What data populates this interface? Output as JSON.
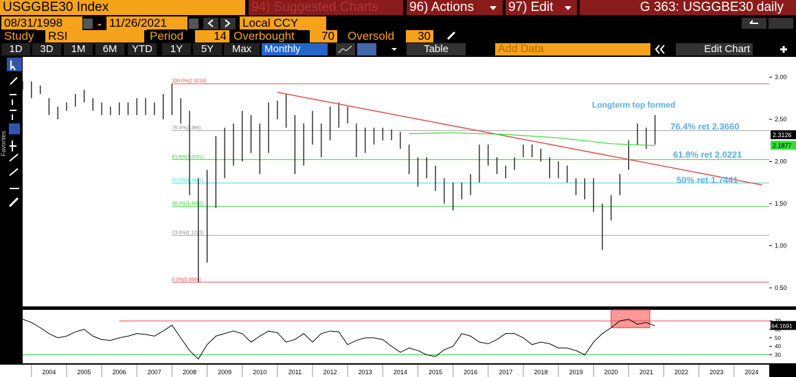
{
  "header": {
    "ticker": "USGGBE30 Index",
    "suggested": "94) Suggested Charts",
    "actions": "96) Actions",
    "edit": "97) Edit",
    "chart_id": "G 363: USGGBE30 daily"
  },
  "dates": {
    "start": "08/31/1998",
    "end": "11/26/2021",
    "currency": "Local CCY"
  },
  "study": {
    "label": "Study",
    "name": "RSI",
    "period_label": "Period",
    "period": "14",
    "overbought_label": "Overbought",
    "overbought": "70",
    "oversold_label": "Oversold",
    "oversold": "30"
  },
  "ranges": [
    "1D",
    "3D",
    "1M",
    "6M",
    "YTD",
    "1Y",
    "5Y",
    "Max"
  ],
  "frequency": "Monthly",
  "table": "Table",
  "add_data": "Add Data",
  "edit_chart": "Edit Chart",
  "mini_toolbar": [
    "Track",
    "Annotate",
    "News",
    "Zoom"
  ],
  "reset": "Reset",
  "favorites": "Favorites",
  "chart_data": [
    {
      "type": "range-bar",
      "xlim": [
        2003.75,
        2025.0
      ],
      "xticks": [
        2004,
        2005,
        2006,
        2007,
        2008,
        2009,
        2010,
        2011,
        2012,
        2013,
        2014,
        2015,
        2016,
        2017,
        2018,
        2019,
        2020,
        2021,
        2022,
        2023,
        2024
      ],
      "ylim": [
        0.28,
        3.24
      ],
      "yticks": [
        {
          "value": 0.5,
          "label": "0.50"
        },
        {
          "value": 1,
          "label": "1.00"
        },
        {
          "value": 1.5,
          "label": "1.50"
        },
        {
          "value": 2,
          "label": "2.00"
        },
        {
          "value": 2.5,
          "label": "2.50"
        },
        {
          "value": 3,
          "label": "3.00"
        }
      ],
      "x": [
        2003.75,
        2004,
        2004.25,
        2004.5,
        2004.75,
        2005,
        2005.25,
        2005.5,
        2005.75,
        2006,
        2006.25,
        2006.5,
        2006.75,
        2007,
        2007.25,
        2007.5,
        2007.75,
        2008,
        2008.25,
        2008.5,
        2008.75,
        2009,
        2009.25,
        2009.5,
        2009.75,
        2010,
        2010.25,
        2010.5,
        2010.75,
        2011,
        2011.25,
        2011.5,
        2011.75,
        2012,
        2012.25,
        2012.5,
        2012.75,
        2013,
        2013.25,
        2013.5,
        2013.75,
        2014,
        2014.25,
        2014.5,
        2014.75,
        2015,
        2015.25,
        2015.5,
        2015.75,
        2016,
        2016.25,
        2016.5,
        2016.75,
        2017,
        2017.25,
        2017.5,
        2017.75,
        2018,
        2018.25,
        2018.5,
        2018.75,
        2019,
        2019.25,
        2019.5,
        2019.75,
        2020,
        2020.25,
        2020.5,
        2020.75,
        2021,
        2021.25,
        2021.5,
        2021.75
      ],
      "series": [
        {
          "color": "#000000",
          "low": [
            2.85,
            2.75,
            2.8,
            2.55,
            2.5,
            2.6,
            2.65,
            2.7,
            2.6,
            2.55,
            2.55,
            2.55,
            2.55,
            2.55,
            2.55,
            2.55,
            2.5,
            2.55,
            2.45,
            1.6,
            0.57,
            0.8,
            1.45,
            1.8,
            1.95,
            2.0,
            2.1,
            1.85,
            2.1,
            2.5,
            2.4,
            1.85,
            1.95,
            2.2,
            2.05,
            2.25,
            2.4,
            2.45,
            2.05,
            2.1,
            2.2,
            2.25,
            2.25,
            2.15,
            1.85,
            1.7,
            1.8,
            1.65,
            1.5,
            1.42,
            1.55,
            1.6,
            1.75,
            1.95,
            1.85,
            1.8,
            1.9,
            2.05,
            2.05,
            2.0,
            1.8,
            1.8,
            1.75,
            1.6,
            1.55,
            1.4,
            0.95,
            1.3,
            1.6,
            1.9,
            2.2,
            2.15,
            2.2
          ],
          "high": [
            2.95,
            2.95,
            2.9,
            2.75,
            2.65,
            2.7,
            2.8,
            2.85,
            2.75,
            2.7,
            2.65,
            2.7,
            2.7,
            2.75,
            2.75,
            2.7,
            2.8,
            2.92,
            2.75,
            2.6,
            1.8,
            1.9,
            2.3,
            2.4,
            2.45,
            2.6,
            2.55,
            2.45,
            2.7,
            2.72,
            2.8,
            2.55,
            2.45,
            2.6,
            2.45,
            2.65,
            2.7,
            2.65,
            2.45,
            2.4,
            2.4,
            2.4,
            2.38,
            2.35,
            2.2,
            2.05,
            2.05,
            1.95,
            1.8,
            1.75,
            1.75,
            1.85,
            2.2,
            2.2,
            2.05,
            1.95,
            2.05,
            2.2,
            2.2,
            2.15,
            2.05,
            2.0,
            1.95,
            1.8,
            1.8,
            1.8,
            1.5,
            1.6,
            1.85,
            2.25,
            2.45,
            2.4,
            2.55
          ]
        }
      ],
      "fib_levels": [
        {
          "value": 2.9218,
          "label": "100.0%(2.9218)",
          "color": "#e05050"
        },
        {
          "value": 2.366,
          "label": "76.4%(2.366)",
          "color": "#aaaaaa"
        },
        {
          "value": 2.0221,
          "label": "61.8%(2.0221)",
          "color": "#33cc33"
        },
        {
          "value": 1.7441,
          "label": "50.0%(1.7441)",
          "color": "#33dddd"
        },
        {
          "value": 1.4662,
          "label": "38.2%(1.4662)",
          "color": "#33cc33"
        },
        {
          "value": 1.1223,
          "label": "23.6%(1.1223)",
          "color": "#aaaaaa"
        },
        {
          "value": 0.5664,
          "label": "0.0%(0.5664)",
          "color": "#e05050"
        }
      ],
      "trendline": {
        "x": [
          2011,
          2024.8
        ],
        "values": [
          2.82,
          1.72
        ],
        "color": "#e05050"
      },
      "moving_average": {
        "x": [
          2014.75,
          2016,
          2017.5,
          2019,
          2020.5,
          2021.75
        ],
        "values": [
          2.33,
          2.34,
          2.32,
          2.28,
          2.21,
          2.1877
        ],
        "color": "#33dd33"
      },
      "annotations": [
        "Longterm top formed",
        "76.4% ret 2.3660",
        "61.8% ret 2.0221",
        "50% ret 1.7441"
      ],
      "annotation_color": "#5aaee8",
      "last_price": 2.3126,
      "last_ma": 2.1877
    },
    {
      "type": "line",
      "xlim": [
        2003.75,
        2025.0
      ],
      "ylim": [
        20,
        83
      ],
      "yticks": [
        30,
        40,
        50,
        60,
        70
      ],
      "x": [
        2003.75,
        2004,
        2004.25,
        2004.5,
        2004.75,
        2005,
        2005.25,
        2005.5,
        2005.75,
        2006,
        2006.25,
        2006.5,
        2006.75,
        2007,
        2007.25,
        2007.5,
        2007.75,
        2008,
        2008.25,
        2008.5,
        2008.75,
        2009,
        2009.25,
        2009.5,
        2009.75,
        2010,
        2010.25,
        2010.5,
        2010.75,
        2011,
        2011.25,
        2011.5,
        2011.75,
        2012,
        2012.25,
        2012.5,
        2012.75,
        2013,
        2013.25,
        2013.5,
        2013.75,
        2014,
        2014.25,
        2014.5,
        2014.75,
        2015,
        2015.25,
        2015.5,
        2015.75,
        2016,
        2016.25,
        2016.5,
        2016.75,
        2017,
        2017.25,
        2017.5,
        2017.75,
        2018,
        2018.25,
        2018.5,
        2018.75,
        2019,
        2019.25,
        2019.5,
        2019.75,
        2020,
        2020.25,
        2020.5,
        2020.75,
        2021,
        2021.25,
        2021.5,
        2021.75
      ],
      "series": [
        {
          "color": "#000000",
          "values": [
            72,
            68,
            62,
            55,
            50,
            52,
            57,
            60,
            52,
            48,
            47,
            50,
            52,
            55,
            54,
            52,
            58,
            65,
            50,
            35,
            25,
            42,
            52,
            55,
            58,
            55,
            45,
            52,
            58,
            56,
            45,
            48,
            55,
            45,
            55,
            58,
            57,
            42,
            47,
            50,
            50,
            48,
            40,
            33,
            38,
            35,
            30,
            28,
            36,
            40,
            55,
            52,
            45,
            43,
            48,
            55,
            55,
            50,
            42,
            45,
            43,
            38,
            38,
            35,
            30,
            45,
            55,
            62,
            70,
            72,
            66,
            68,
            64.1691
          ]
        }
      ],
      "overbought": {
        "value": 70,
        "start": 2006.5,
        "color": "#e05050"
      },
      "oversold": {
        "value": 30,
        "color": "#33cc33"
      },
      "highlight": {
        "x": [
          2020.5,
          2021.6
        ],
        "y": [
          62,
          83
        ],
        "color": "#ff5555"
      },
      "last_value": 64.1691
    }
  ]
}
